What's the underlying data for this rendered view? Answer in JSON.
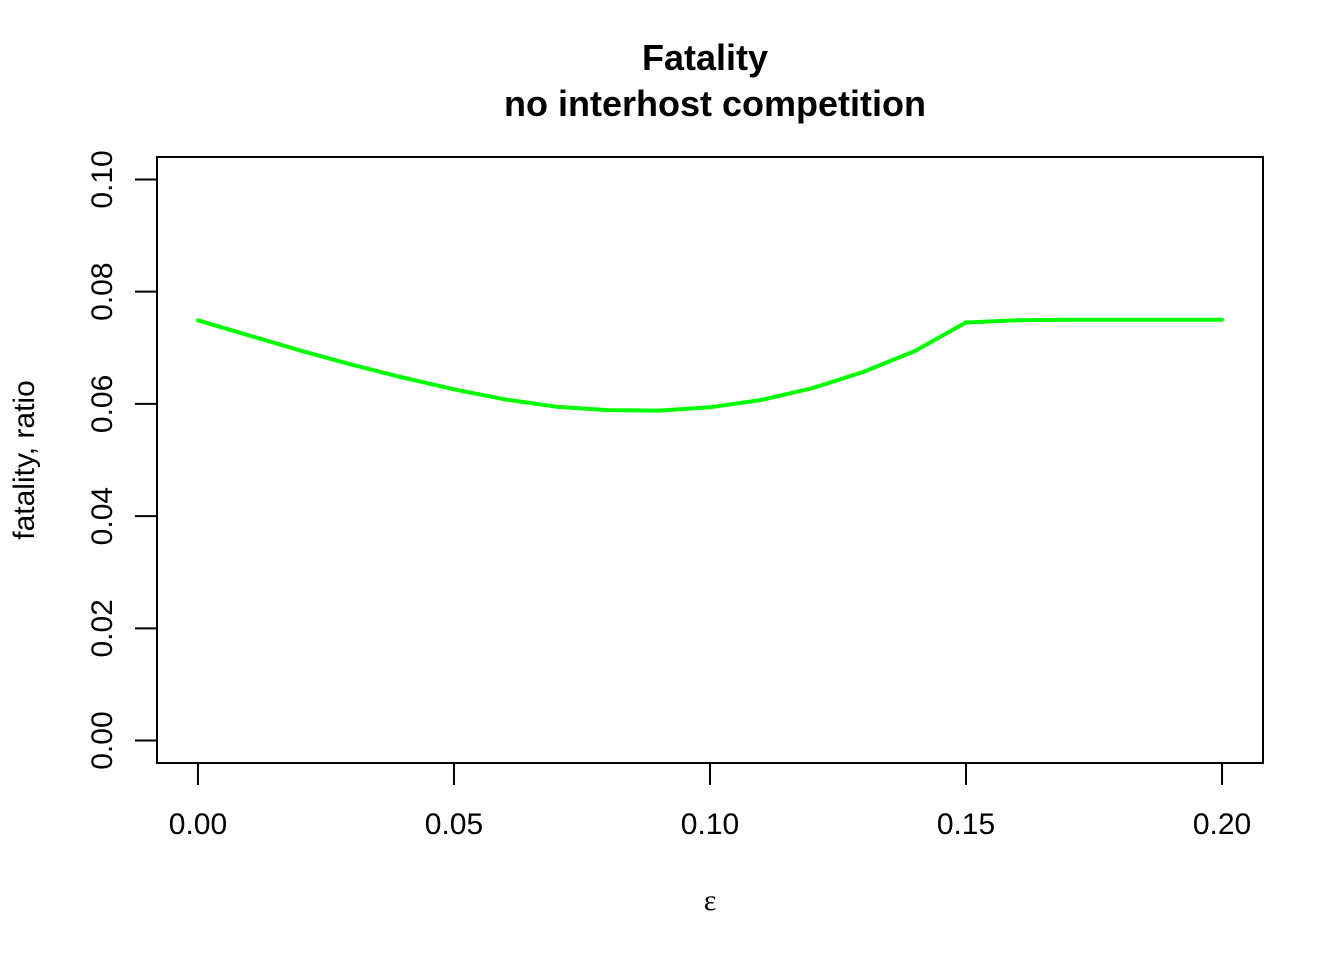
{
  "chart_data": {
    "type": "line",
    "title": "Fatality",
    "subtitle": "no interhost competition",
    "xlabel": "ε",
    "ylabel": "fatality, ratio",
    "xlim": [
      -0.008,
      0.208
    ],
    "ylim": [
      -0.004,
      0.104
    ],
    "x_ticks": [
      0.0,
      0.05,
      0.1,
      0.15,
      0.2
    ],
    "x_tick_labels": [
      "0.00",
      "0.05",
      "0.10",
      "0.15",
      "0.20"
    ],
    "y_ticks": [
      0.0,
      0.02,
      0.04,
      0.06,
      0.08,
      0.1
    ],
    "y_tick_labels": [
      "0.00",
      "0.02",
      "0.04",
      "0.06",
      "0.08",
      "0.10"
    ],
    "grid": false,
    "line_color": "#00ff00",
    "series": [
      {
        "x": [
          0.0,
          0.01,
          0.02,
          0.03,
          0.04,
          0.05,
          0.06,
          0.07,
          0.08,
          0.09,
          0.1,
          0.11,
          0.12,
          0.13,
          0.14,
          0.15,
          0.16,
          0.17,
          0.18,
          0.19,
          0.2
        ],
        "y": [
          0.0749,
          0.0722,
          0.0695,
          0.067,
          0.0647,
          0.0626,
          0.0608,
          0.0595,
          0.0589,
          0.0588,
          0.0594,
          0.0607,
          0.0628,
          0.0657,
          0.0694,
          0.0745,
          0.0749,
          0.075,
          0.075,
          0.075,
          0.075
        ]
      }
    ]
  }
}
